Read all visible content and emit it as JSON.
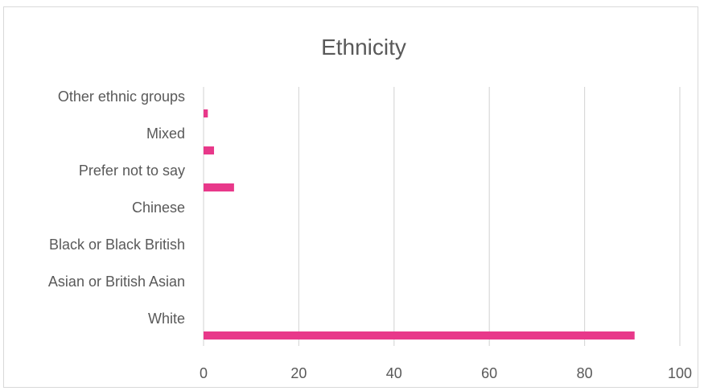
{
  "chart_data": {
    "type": "bar",
    "orientation": "horizontal",
    "title": "Ethnicity",
    "categories": [
      "White",
      "Asian or British Asian",
      "Black or Black British",
      "Chinese",
      "Prefer not to say",
      "Mixed",
      "Other ethnic groups"
    ],
    "values": [
      90.5,
      0,
      0,
      0,
      6.4,
      2.2,
      0.9
    ],
    "xlim": [
      0,
      100
    ],
    "xticks": [
      0,
      20,
      40,
      60,
      80,
      100
    ],
    "xlabel": "",
    "ylabel": "",
    "grid": true,
    "legend": "none",
    "bar_color": "#e8388a"
  }
}
